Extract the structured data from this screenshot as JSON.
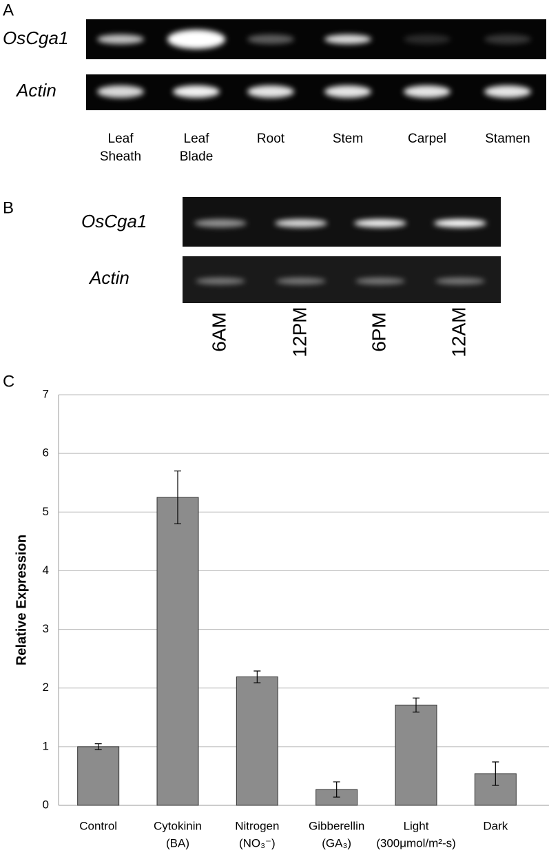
{
  "panel_a": {
    "label": "A",
    "rows": [
      "OsCga1",
      "Actin"
    ],
    "lanes": [
      [
        "Leaf",
        "Sheath"
      ],
      [
        "Leaf",
        "Blade"
      ],
      [
        "Root"
      ],
      [
        "Stem"
      ],
      [
        "Carpel"
      ],
      [
        "Stamen"
      ]
    ]
  },
  "panel_b": {
    "label": "B",
    "rows": [
      "OsCga1",
      "Actin"
    ],
    "lanes": [
      "6AM",
      "12PM",
      "6PM",
      "12AM"
    ]
  },
  "chart_data": {
    "type": "bar",
    "panel_label": "C",
    "y_label": "Relative Expression",
    "categories": [
      [
        "Control"
      ],
      [
        "Cytokinin",
        "(BA)"
      ],
      [
        "Nitrogen",
        "(NO₃⁻)"
      ],
      [
        "Gibberellin",
        "(GA₃)"
      ],
      [
        "Light",
        "(300μmol/m²-s)"
      ],
      [
        "Dark"
      ]
    ],
    "values": [
      1.0,
      5.25,
      2.19,
      0.27,
      1.71,
      0.54
    ],
    "errors": [
      0.05,
      0.45,
      0.1,
      0.13,
      0.12,
      0.2
    ],
    "color": "#8c8c8c",
    "ylim": [
      0,
      7
    ],
    "yticks": [
      0,
      1,
      2,
      3,
      4,
      5,
      6,
      7
    ],
    "grid": true
  }
}
